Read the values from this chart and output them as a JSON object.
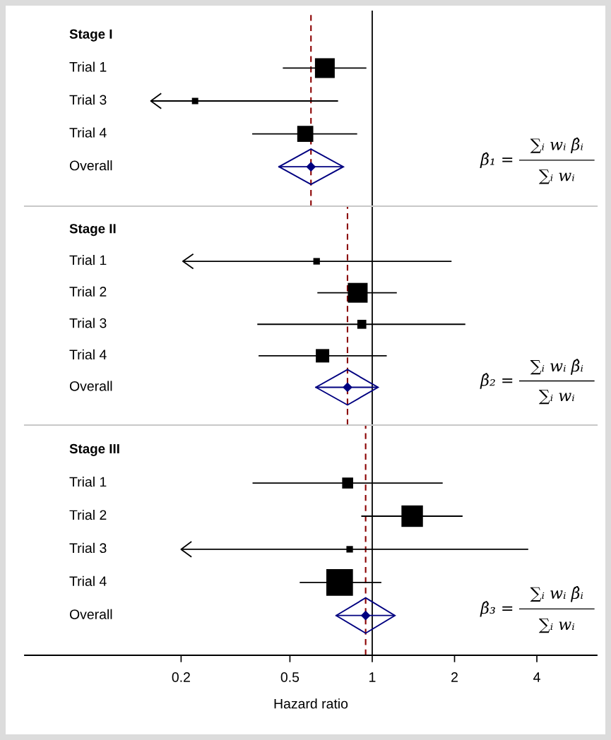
{
  "chart_data": [
    {
      "type": "scatter",
      "orientation": "horizontal",
      "categories": [
        "Stage I",
        "Trial 1",
        "Trial 3",
        "Trial 4",
        "Overall"
      ],
      "series": [
        {
          "type": "bubble",
          "marker": "square",
          "color": "#000000",
          "values": [
            null,
            0.671,
            0.225,
            0.569,
            null
          ],
          "sizes": [
            null,
            1,
            0.103,
            0.657,
            null
          ],
          "errors": [
            null,
            [
              0.471,
              0.952
            ],
            [
              0.155,
              0.75
            ],
            [
              0.364,
              0.881
            ],
            null
          ]
        },
        {
          "marker": "diamond",
          "color": "#000080",
          "values": [
            null,
            null,
            null,
            null,
            0.597
          ],
          "errors": [
            null,
            null,
            null,
            null,
            [
              0.456,
              0.784
            ]
          ]
        }
      ],
      "xlim": [
        0.0536,
        6.63
      ],
      "xticks": [
        0.2,
        0.5,
        1,
        2,
        4
      ],
      "log": "x",
      "tick_labels": "y",
      "ref_lines": [
        {
          "axis": "x",
          "value": 1,
          "color": "#000000"
        },
        {
          "axis": "x",
          "value": 0.597,
          "color": "#8b0000",
          "line_style": "dashed"
        }
      ],
      "annotations": [
        "β̂₁ =",
        "∑ᵢ wᵢ β̂ᵢ",
        "∑ᵢ wᵢ"
      ]
    },
    {
      "type": "scatter",
      "orientation": "horizontal",
      "categories": [
        "Stage II",
        "Trial 1",
        "Trial 2",
        "Trial 3",
        "Trial 4",
        "Overall"
      ],
      "series": [
        {
          "type": "bubble",
          "marker": "square",
          "color": "#000000",
          "values": [
            null,
            0.626,
            0.885,
            0.916,
            0.658,
            null
          ],
          "sizes": [
            null,
            0.11,
            1,
            0.206,
            0.46,
            null
          ],
          "errors": [
            null,
            [
              0.203,
              1.95
            ],
            [
              0.63,
              1.23
            ],
            [
              0.38,
              2.19
            ],
            [
              0.384,
              1.13
            ],
            null
          ]
        },
        {
          "marker": "diamond",
          "color": "#000080",
          "values": [
            null,
            null,
            null,
            null,
            null,
            0.812
          ],
          "errors": [
            null,
            null,
            null,
            null,
            null,
            [
              0.622,
              1.05
            ]
          ]
        }
      ],
      "xlim": [
        0.0536,
        6.63
      ],
      "xticks": [
        0.2,
        0.5,
        1,
        2,
        4
      ],
      "log": "x",
      "tick_labels": "y",
      "ref_lines": [
        {
          "axis": "x",
          "value": 1,
          "color": "#000000"
        },
        {
          "axis": "x",
          "value": 0.812,
          "color": "#8b0000",
          "line_style": "dashed"
        }
      ],
      "annotations": [
        "β̂₂ =",
        "∑ᵢ wᵢ β̂ᵢ",
        "∑ᵢ wᵢ"
      ]
    },
    {
      "type": "scatter",
      "orientation": "horizontal",
      "categories": [
        "Stage III",
        "Trial 1",
        "Trial 2",
        "Trial 3",
        "Trial 4",
        "Overall"
      ],
      "series": [
        {
          "type": "bubble",
          "marker": "square",
          "color": "#000000",
          "values": [
            null,
            0.813,
            1.4,
            0.827,
            0.76,
            null
          ],
          "sizes": [
            null,
            0.17,
            0.65,
            0.06,
            1,
            null
          ],
          "errors": [
            null,
            [
              0.365,
              1.81
            ],
            [
              0.912,
              2.14
            ],
            [
              0.2,
              3.72
            ],
            [
              0.543,
              1.08
            ],
            null
          ]
        },
        {
          "marker": "diamond",
          "color": "#000080",
          "values": [
            null,
            null,
            null,
            null,
            null,
            0.946
          ],
          "errors": [
            null,
            null,
            null,
            null,
            null,
            [
              0.738,
              1.21
            ]
          ]
        }
      ],
      "xlim": [
        0.0536,
        6.63
      ],
      "xticks": [
        0.2,
        0.5,
        1,
        2,
        4
      ],
      "log": "x",
      "xlabel": "Hazard ratio",
      "ref_lines": [
        {
          "axis": "x",
          "value": 1,
          "color": "#000000"
        },
        {
          "axis": "x",
          "value": 0.946,
          "color": "#8b0000",
          "line_style": "dashed"
        }
      ],
      "annotations": [
        "β̂₃ =",
        "∑ᵢ wᵢ β̂ᵢ",
        "∑ᵢ wᵢ"
      ]
    }
  ]
}
